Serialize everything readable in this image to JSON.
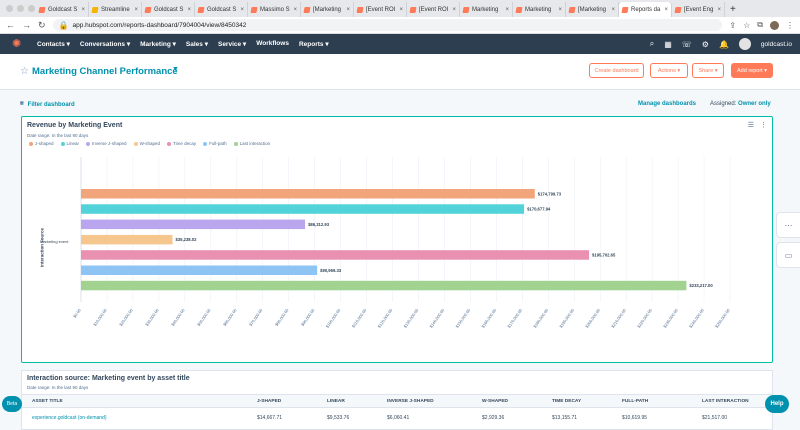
{
  "browser": {
    "tabs": [
      {
        "label": "Goldcast S",
        "fav": "hubspot"
      },
      {
        "label": "Streamline",
        "fav": "yellow"
      },
      {
        "label": "Goldcast S",
        "fav": "hubspot"
      },
      {
        "label": "Goldcast S",
        "fav": "hubspot"
      },
      {
        "label": "Massimo S",
        "fav": "hubspot"
      },
      {
        "label": "[Marketing",
        "fav": "hubspot"
      },
      {
        "label": "[Event ROI",
        "fav": "hubspot"
      },
      {
        "label": "[Event ROI",
        "fav": "hubspot"
      },
      {
        "label": "Marketing",
        "fav": "hubspot"
      },
      {
        "label": "Marketing",
        "fav": "hubspot"
      },
      {
        "label": "[Marketing",
        "fav": "hubspot"
      },
      {
        "label": "Reports da",
        "fav": "hubspot",
        "active": true
      },
      {
        "label": "[Event Eng",
        "fav": "hubspot"
      }
    ],
    "new_tab": "+",
    "url": "app.hubspot.com/reports-dashboard/7904004/view/8450342"
  },
  "nav": {
    "menu": [
      "Contacts",
      "Conversations",
      "Marketing",
      "Sales",
      "Service",
      "Workflows",
      "Reports"
    ],
    "username": "goldcast.io"
  },
  "header": {
    "title": "Marketing Channel Performance",
    "create_dashboard": "Create dashboard",
    "actions": "Actions ▾",
    "share": "Share ▾",
    "add_report": "Add report ▾"
  },
  "filters": {
    "filter_dashboard": "Filter dashboard",
    "manage_dashboards": "Manage dashboards",
    "assigned_label": "Assigned:",
    "assigned_value": "Owner only"
  },
  "chart_card": {
    "title": "Revenue by Marketing Event",
    "date_range": "Date range: In the last 90 days",
    "y_axis_label": "Interaction source",
    "category_label": "Marketing event"
  },
  "chart_data": {
    "type": "bar",
    "orientation": "horizontal",
    "title": "Revenue by Marketing Event",
    "ylabel": "Interaction source",
    "categories": [
      "Marketing event"
    ],
    "series": [
      {
        "name": "J-shaped",
        "value": 174799.73,
        "label": "$174,799.73",
        "color": "#f2a47a"
      },
      {
        "name": "Linear",
        "value": 170677.94,
        "label": "$170,677.94",
        "color": "#51d3d9"
      },
      {
        "name": "Inverse J-shaped",
        "value": 86312.93,
        "label": "$86,312.93",
        "color": "#b9a6ee"
      },
      {
        "name": "W-shaped",
        "value": 35238.02,
        "label": "$35,238.02",
        "color": "#f5c78e"
      },
      {
        "name": "Time decay",
        "value": 195702.65,
        "label": "$195,702.65",
        "color": "#ea90b1"
      },
      {
        "name": "Full-path",
        "value": 90969.33,
        "label": "$90,969.33",
        "color": "#8dc4f4"
      },
      {
        "name": "Last interaction",
        "value": 233217.0,
        "label": "$233,217.00",
        "color": "#a2d28f"
      }
    ],
    "x_ticks": [
      "$0.00",
      "$10,000.00",
      "$20,000.00",
      "$30,000.00",
      "$40,000.00",
      "$50,000.00",
      "$60,000.00",
      "$70,000.00",
      "$80,000.00",
      "$90,000.00",
      "$100,000.00",
      "$110,000.00",
      "$120,000.00",
      "$130,000.00",
      "$140,000.00",
      "$150,000.00",
      "$160,000.00",
      "$170,000.00",
      "$180,000.00",
      "$190,000.00",
      "$200,000.00",
      "$210,000.00",
      "$220,000.00",
      "$230,000.00",
      "$240,000.00",
      "$250,000.00"
    ],
    "xlim": [
      0,
      250000
    ],
    "grid": true,
    "legend_position": "top-left"
  },
  "table_card": {
    "title": "Interaction source: Marketing event by asset title",
    "date_range": "Date range: In the last 90 days",
    "columns": [
      "ASSET TITLE",
      "J-SHAPED",
      "LINEAR",
      "INVERSE J-SHAPED",
      "W-SHAPED",
      "TIME DECAY",
      "FULL-PATH",
      "LAST INTERACTION"
    ],
    "row": [
      "experience.goldcast (on-demand)",
      "$14,667.71",
      "$9,533.76",
      "$6,060.41",
      "$2,929.36",
      "$13,155.71",
      "$10,619.95",
      "$21,517.00"
    ]
  },
  "widgets": {
    "beta": "Beta",
    "help": "Help"
  }
}
